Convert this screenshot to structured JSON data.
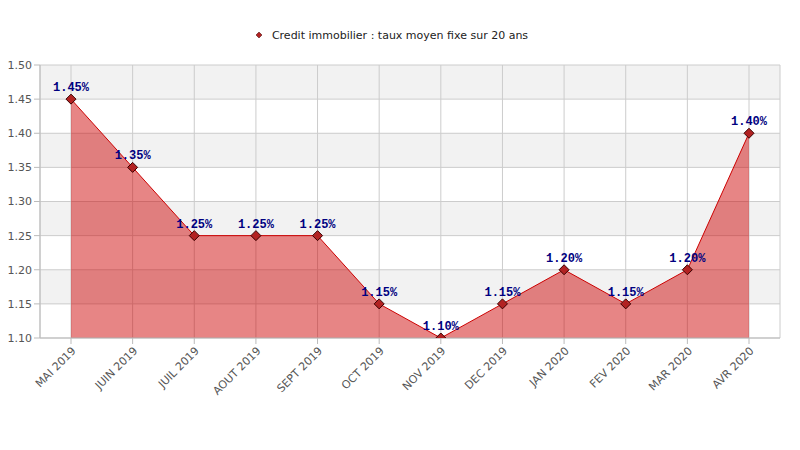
{
  "chart_data": {
    "type": "area",
    "legend": "top",
    "grid": true,
    "data_labels": true,
    "categories": [
      "MAI 2019",
      "JUIN 2019",
      "JUIL 2019",
      "AOUT 2019",
      "SEPT 2019",
      "OCT 2019",
      "NOV 2019",
      "DEC 2019",
      "JAN 2020",
      "FEV 2020",
      "MAR 2020",
      "AVR 2020"
    ],
    "series": [
      {
        "name": "Credit immobilier : taux moyen fixe sur 20 ans",
        "color": "#cc0000",
        "marker": "diamond",
        "values": [
          1.45,
          1.35,
          1.25,
          1.25,
          1.25,
          1.15,
          1.1,
          1.15,
          1.2,
          1.15,
          1.2,
          1.4
        ],
        "value_labels": [
          "1.45%",
          "1.35%",
          "1.25%",
          "1.25%",
          "1.25%",
          "1.15%",
          "1.10%",
          "1.15%",
          "1.20%",
          "1.15%",
          "1.20%",
          "1.40%"
        ]
      }
    ],
    "ylim": [
      1.1,
      1.5
    ],
    "yticks": [
      {
        "value": 1.1,
        "label": "1.10"
      },
      1.15,
      {
        "value": 1.2,
        "label": "1.20"
      },
      1.25,
      {
        "value": 1.3,
        "label": "1.30"
      },
      1.35,
      {
        "value": 1.4,
        "label": "1.40"
      },
      1.45,
      {
        "value": 1.5,
        "label": "1.50"
      }
    ]
  }
}
